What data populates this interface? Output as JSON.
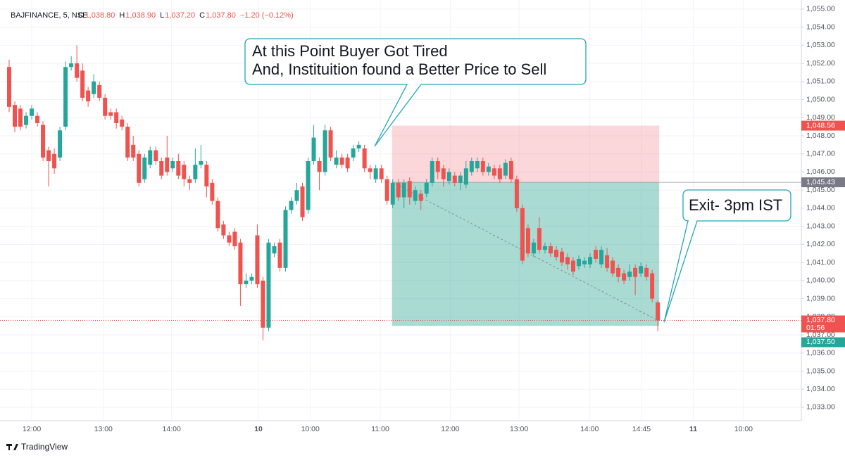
{
  "chart_data": {
    "type": "candlestick",
    "symbol": "BAJFINANCE, 5, NSE",
    "ohlc": [
      {
        "label": "O",
        "value": "1,038.80"
      },
      {
        "label": "H",
        "value": "1,038.90"
      },
      {
        "label": "L",
        "value": "1,037.20"
      },
      {
        "label": "C",
        "value": "1,037.80"
      }
    ],
    "change": "−1.20 (−0.12%)",
    "up_color": "#26a69a",
    "down_color": "#ef5350",
    "ylim": [
      1032.26,
      1055.5
    ],
    "yticks": [
      {
        "value": 1033,
        "label": "1,033.00"
      },
      {
        "value": 1034,
        "label": "1,034.00"
      },
      {
        "value": 1035,
        "label": "1,035.00"
      },
      {
        "value": 1036,
        "label": "1,036.00"
      },
      {
        "value": 1037,
        "label": "1,037.00"
      },
      {
        "value": 1038,
        "label": "1,038.00"
      },
      {
        "value": 1039,
        "label": "1,039.00"
      },
      {
        "value": 1040,
        "label": "1,040.00"
      },
      {
        "value": 1041,
        "label": "1,041.00"
      },
      {
        "value": 1042,
        "label": "1,042.00"
      },
      {
        "value": 1043,
        "label": "1,043.00"
      },
      {
        "value": 1044,
        "label": "1,044.00"
      },
      {
        "value": 1045,
        "label": "1,045.00"
      },
      {
        "value": 1046,
        "label": "1,046.00"
      },
      {
        "value": 1047,
        "label": "1,047.00"
      },
      {
        "value": 1048,
        "label": "1,048.00"
      },
      {
        "value": 1049,
        "label": "1,049.00"
      },
      {
        "value": 1050,
        "label": "1,050.00"
      },
      {
        "value": 1051,
        "label": "1,051.00"
      },
      {
        "value": 1052,
        "label": "1,052.00"
      },
      {
        "value": 1053,
        "label": "1,053.00"
      },
      {
        "value": 1054,
        "label": "1,054.00"
      },
      {
        "value": 1055,
        "label": "1,055.00"
      }
    ],
    "xticks": [
      {
        "value": 4,
        "label": "12:00"
      },
      {
        "value": 16.7,
        "label": "13:00"
      },
      {
        "value": 28.8,
        "label": "14:00"
      },
      {
        "value": 44.2,
        "label": "10"
      },
      {
        "value": 53.4,
        "label": "10:00"
      },
      {
        "value": 65.8,
        "label": "11:00"
      },
      {
        "value": 78.2,
        "label": "12:00"
      },
      {
        "value": 90.4,
        "label": "13:00"
      },
      {
        "value": 102.9,
        "label": "14:00"
      },
      {
        "value": 112.1,
        "label": "14:45"
      },
      {
        "value": 121.3,
        "label": "11"
      },
      {
        "value": 130.2,
        "label": "10:00"
      }
    ],
    "candles": [
      [
        1051.8,
        1052.2,
        1049.3,
        1049.6
      ],
      [
        1049.7,
        1049.9,
        1048.2,
        1048.5
      ],
      [
        1049.5,
        1049.7,
        1048.3,
        1048.5
      ],
      [
        1048.6,
        1049.3,
        1048.4,
        1049.1
      ],
      [
        1049.1,
        1049.7,
        1048.9,
        1049.5
      ],
      [
        1049.1,
        1049.3,
        1048.5,
        1048.7
      ],
      [
        1048.6,
        1048.8,
        1046.6,
        1046.8
      ],
      [
        1047.2,
        1047.4,
        1045.2,
        1046.6
      ],
      [
        1047.0,
        1047.3,
        1045.9,
        1046.2
      ],
      [
        1046.8,
        1048.5,
        1046.6,
        1048.3
      ],
      [
        1048.5,
        1052.1,
        1048.3,
        1051.8
      ],
      [
        1051.8,
        1052.4,
        1051.6,
        1052.0
      ],
      [
        1052.0,
        1053.0,
        1051.0,
        1051.2
      ],
      [
        1051.6,
        1052.0,
        1049.9,
        1050.1
      ],
      [
        1050.5,
        1050.7,
        1049.6,
        1049.9
      ],
      [
        1050.3,
        1051.4,
        1050.1,
        1051.0
      ],
      [
        1050.8,
        1051.0,
        1049.9,
        1050.1
      ],
      [
        1050.1,
        1050.3,
        1048.9,
        1049.1
      ],
      [
        1049.3,
        1049.5,
        1048.9,
        1049.1
      ],
      [
        1049.3,
        1049.5,
        1048.4,
        1048.7
      ],
      [
        1048.9,
        1049.1,
        1048.3,
        1048.5
      ],
      [
        1048.5,
        1048.7,
        1046.6,
        1046.8
      ],
      [
        1047.5,
        1048.0,
        1046.6,
        1046.8
      ],
      [
        1047.0,
        1047.2,
        1045.2,
        1045.4
      ],
      [
        1045.6,
        1047.0,
        1045.4,
        1046.8
      ],
      [
        1046.4,
        1047.4,
        1046.2,
        1047.2
      ],
      [
        1047.2,
        1047.4,
        1046.4,
        1046.6
      ],
      [
        1046.6,
        1046.8,
        1045.6,
        1045.8
      ],
      [
        1046.8,
        1048.0,
        1045.8,
        1046.0
      ],
      [
        1046.2,
        1046.8,
        1046.0,
        1046.6
      ],
      [
        1046.6,
        1047.0,
        1045.6,
        1045.8
      ],
      [
        1046.4,
        1046.6,
        1045.2,
        1045.6
      ],
      [
        1045.6,
        1045.8,
        1045.0,
        1045.4
      ],
      [
        1045.6,
        1047.3,
        1045.4,
        1046.4
      ],
      [
        1046.4,
        1047.5,
        1046.2,
        1046.6
      ],
      [
        1046.4,
        1046.6,
        1044.6,
        1045.2
      ],
      [
        1045.4,
        1045.6,
        1044.2,
        1044.4
      ],
      [
        1044.4,
        1044.6,
        1042.7,
        1042.9
      ],
      [
        1043.1,
        1043.3,
        1042.3,
        1042.5
      ],
      [
        1042.5,
        1042.7,
        1041.9,
        1042.1
      ],
      [
        1042.7,
        1042.9,
        1041.7,
        1041.9
      ],
      [
        1042.1,
        1042.3,
        1038.6,
        1039.8
      ],
      [
        1039.8,
        1040.4,
        1039.6,
        1040.0
      ],
      [
        1040.0,
        1040.4,
        1039.8,
        1040.2
      ],
      [
        1042.5,
        1043.1,
        1039.6,
        1039.8
      ],
      [
        1040.0,
        1040.2,
        1036.7,
        1037.4
      ],
      [
        1037.4,
        1042.3,
        1037.2,
        1042.1
      ],
      [
        1041.5,
        1042.1,
        1041.3,
        1041.9
      ],
      [
        1042.1,
        1042.3,
        1040.5,
        1040.7
      ],
      [
        1040.7,
        1044.1,
        1040.5,
        1043.9
      ],
      [
        1043.9,
        1044.6,
        1043.7,
        1044.4
      ],
      [
        1044.4,
        1045.4,
        1044.2,
        1045.0
      ],
      [
        1045.2,
        1045.4,
        1043.3,
        1043.5
      ],
      [
        1043.9,
        1046.8,
        1043.7,
        1046.6
      ],
      [
        1046.6,
        1048.6,
        1046.4,
        1047.9
      ],
      [
        1046.6,
        1046.8,
        1045.0,
        1046.0
      ],
      [
        1046.0,
        1048.6,
        1045.8,
        1048.3
      ],
      [
        1048.3,
        1048.5,
        1046.6,
        1046.8
      ],
      [
        1046.4,
        1047.2,
        1046.2,
        1046.8
      ],
      [
        1046.8,
        1047.0,
        1046.2,
        1046.4
      ],
      [
        1046.8,
        1047.0,
        1046.0,
        1046.2
      ],
      [
        1046.8,
        1047.5,
        1046.6,
        1047.3
      ],
      [
        1047.3,
        1047.7,
        1047.1,
        1047.5
      ],
      [
        1047.3,
        1047.5,
        1046.0,
        1046.2
      ],
      [
        1046.2,
        1046.4,
        1045.6,
        1046.0
      ],
      [
        1045.6,
        1046.4,
        1045.4,
        1046.2
      ],
      [
        1046.2,
        1046.4,
        1045.4,
        1045.6
      ],
      [
        1045.6,
        1045.8,
        1044.2,
        1044.4
      ],
      [
        1044.2,
        1045.6,
        1044.0,
        1045.4
      ],
      [
        1045.4,
        1045.6,
        1044.4,
        1044.6
      ],
      [
        1044.6,
        1045.6,
        1044.0,
        1045.4
      ],
      [
        1045.5,
        1045.7,
        1044.2,
        1044.6
      ],
      [
        1044.4,
        1045.2,
        1044.2,
        1045.0
      ],
      [
        1044.8,
        1045.0,
        1043.9,
        1044.4
      ],
      [
        1044.8,
        1045.6,
        1044.6,
        1045.4
      ],
      [
        1045.4,
        1046.8,
        1045.2,
        1046.6
      ],
      [
        1046.6,
        1046.8,
        1045.6,
        1046.0
      ],
      [
        1046.2,
        1046.4,
        1045.2,
        1045.6
      ],
      [
        1045.5,
        1046.2,
        1045.3,
        1046.0
      ],
      [
        1045.8,
        1046.0,
        1045.2,
        1045.4
      ],
      [
        1045.4,
        1046.0,
        1045.0,
        1045.8
      ],
      [
        1045.3,
        1046.6,
        1045.1,
        1046.2
      ],
      [
        1046.0,
        1046.8,
        1045.8,
        1046.6
      ],
      [
        1046.2,
        1046.8,
        1046.0,
        1046.6
      ],
      [
        1046.6,
        1046.8,
        1045.8,
        1046.0
      ],
      [
        1046.0,
        1046.5,
        1045.8,
        1046.3
      ],
      [
        1046.2,
        1046.4,
        1045.6,
        1045.8
      ],
      [
        1046.2,
        1046.4,
        1045.4,
        1045.6
      ],
      [
        1045.8,
        1046.7,
        1045.6,
        1046.5
      ],
      [
        1046.6,
        1046.8,
        1045.4,
        1045.6
      ],
      [
        1045.6,
        1045.8,
        1043.8,
        1044.0
      ],
      [
        1044.0,
        1044.2,
        1040.9,
        1041.1
      ],
      [
        1042.9,
        1043.1,
        1041.3,
        1041.5
      ],
      [
        1041.5,
        1042.3,
        1041.3,
        1042.1
      ],
      [
        1042.9,
        1043.5,
        1041.5,
        1041.7
      ],
      [
        1041.7,
        1042.1,
        1041.5,
        1041.9
      ],
      [
        1041.9,
        1042.1,
        1041.3,
        1041.5
      ],
      [
        1041.7,
        1041.9,
        1041.1,
        1041.3
      ],
      [
        1041.6,
        1041.8,
        1040.8,
        1041.0
      ],
      [
        1041.3,
        1041.5,
        1040.6,
        1040.9
      ],
      [
        1041.1,
        1041.3,
        1040.3,
        1040.5
      ],
      [
        1040.8,
        1041.4,
        1040.6,
        1041.2
      ],
      [
        1040.9,
        1041.3,
        1040.7,
        1041.1
      ],
      [
        1040.9,
        1041.5,
        1040.7,
        1041.3
      ],
      [
        1041.7,
        1041.9,
        1041.0,
        1041.2
      ],
      [
        1040.9,
        1041.9,
        1040.7,
        1041.7
      ],
      [
        1041.4,
        1041.8,
        1040.5,
        1040.7
      ],
      [
        1041.1,
        1041.3,
        1040.2,
        1040.4
      ],
      [
        1040.7,
        1040.9,
        1039.9,
        1040.2
      ],
      [
        1040.4,
        1040.6,
        1039.8,
        1040.0
      ],
      [
        1040.2,
        1040.9,
        1040.0,
        1040.5
      ],
      [
        1040.7,
        1040.9,
        1039.2,
        1040.2
      ],
      [
        1040.4,
        1041.0,
        1040.2,
        1040.8
      ],
      [
        1040.7,
        1040.9,
        1040.0,
        1040.2
      ],
      [
        1040.4,
        1040.6,
        1038.8,
        1039.0
      ],
      [
        1038.8,
        1038.9,
        1037.2,
        1037.8
      ]
    ],
    "last_price": {
      "value": 1037.8,
      "label": "1,037.80",
      "countdown": "01:56"
    },
    "position": {
      "start": 68,
      "end": 115,
      "stop": {
        "value": 1048.56,
        "label": "1,048.56"
      },
      "entry": {
        "value": 1045.43,
        "label": "1,045.43"
      },
      "target": {
        "value": 1037.5,
        "label": "1,037.50"
      }
    },
    "annotations": [
      {
        "lines": [
          "At this Point Buyer Got Tired",
          "And, Instituition found a Better Price to Sell"
        ]
      },
      {
        "lines": [
          "Exit- 3pm IST"
        ]
      }
    ],
    "brand": "TradingView"
  }
}
